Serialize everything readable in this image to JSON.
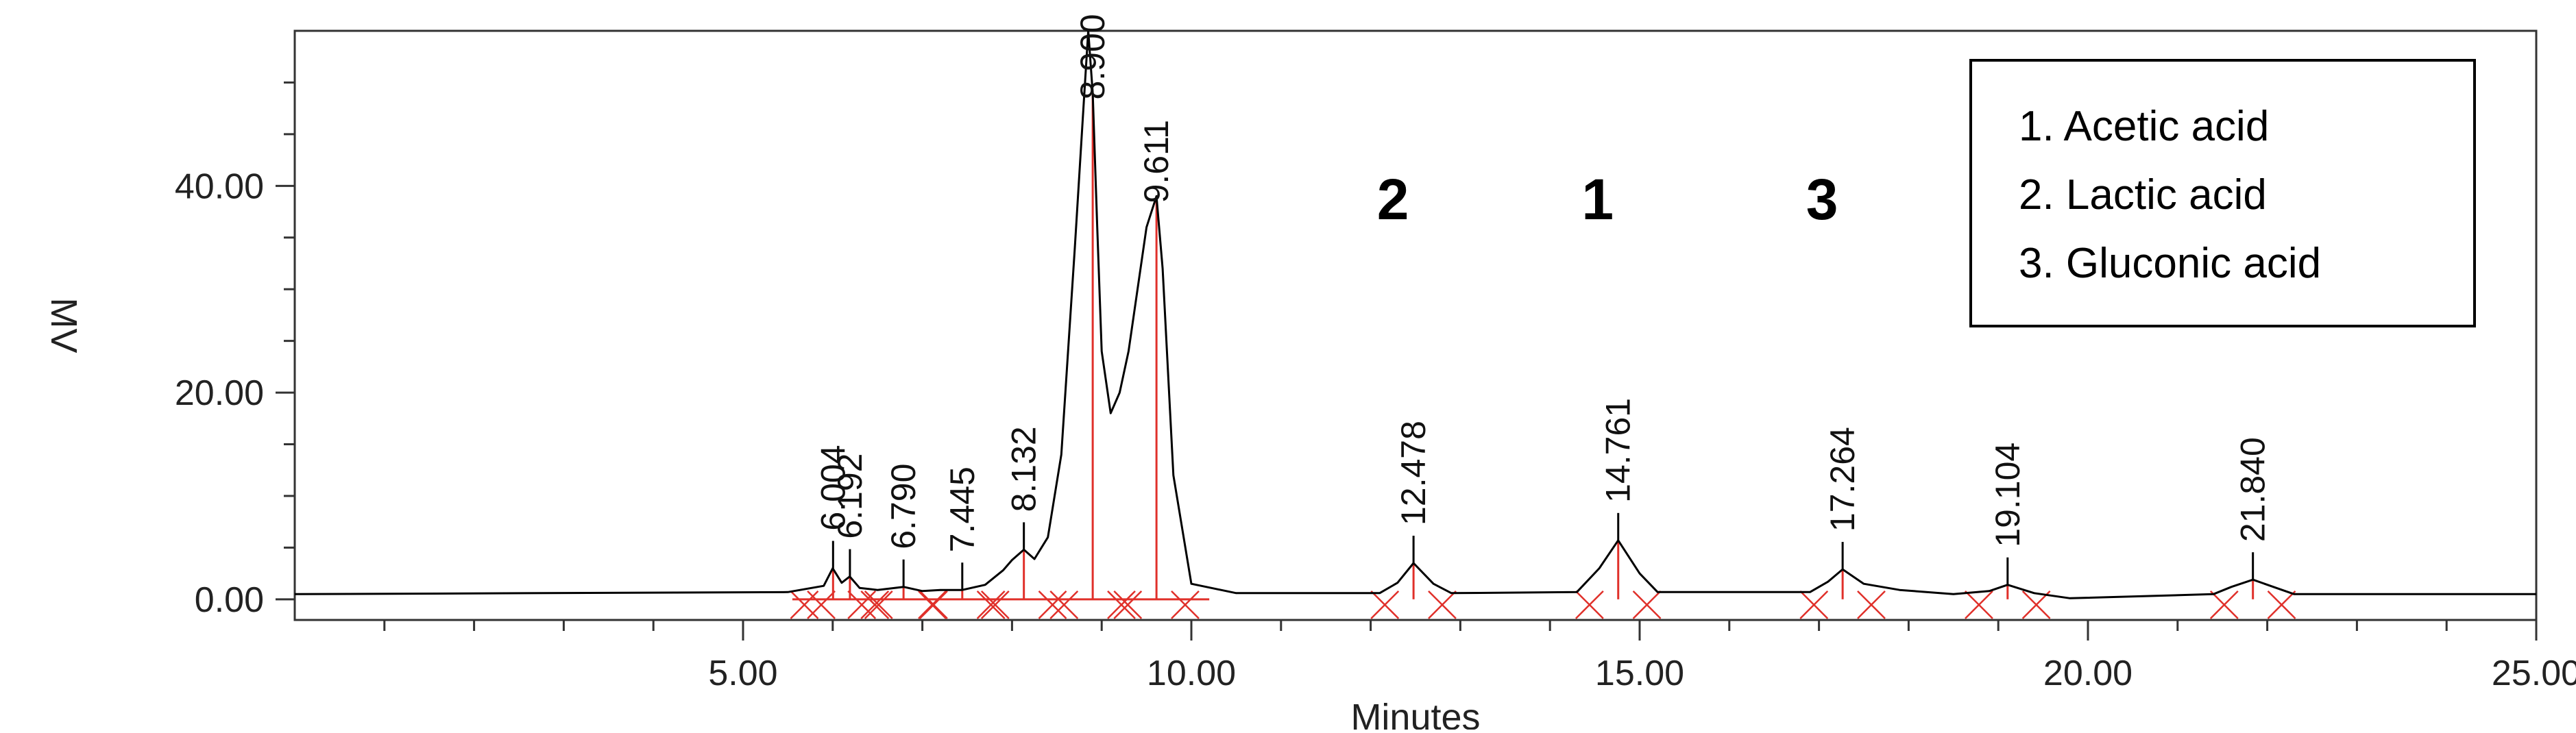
{
  "chart_data": {
    "type": "line",
    "title": "",
    "xlabel": "Minutes",
    "ylabel": "MV",
    "xlim": [
      0,
      25
    ],
    "ylim": [
      -2,
      55
    ],
    "grid": false,
    "x_ticks": [
      "5.00",
      "10.00",
      "15.00",
      "20.00",
      "25.00"
    ],
    "x_tick_values": [
      5,
      10,
      15,
      20,
      25
    ],
    "y_ticks": [
      "0.00",
      "20.00",
      "40.00"
    ],
    "y_tick_values": [
      0,
      20,
      40
    ],
    "series": [
      {
        "x": [
          0.0,
          5.5,
          5.9,
          6.0,
          6.1,
          6.19,
          6.3,
          6.5,
          6.79,
          7.0,
          7.2,
          7.445,
          7.7,
          7.9,
          8.0,
          8.132,
          8.25,
          8.4,
          8.55,
          8.7,
          8.8,
          8.85,
          8.9,
          8.95,
          9.0,
          9.1,
          9.2,
          9.3,
          9.4,
          9.5,
          9.611,
          9.68,
          9.8,
          10.0,
          10.5,
          12.1,
          12.3,
          12.478,
          12.7,
          12.9,
          14.3,
          14.55,
          14.761,
          15.0,
          15.2,
          16.9,
          17.1,
          17.264,
          17.5,
          17.9,
          18.5,
          18.9,
          19.104,
          19.4,
          19.8,
          21.4,
          21.6,
          21.84,
          22.1,
          22.3,
          25.0
        ],
        "y": [
          0.5,
          0.7,
          1.3,
          3.0,
          1.6,
          2.2,
          1.1,
          0.9,
          1.2,
          0.8,
          0.9,
          0.9,
          1.4,
          2.8,
          3.8,
          4.8,
          3.9,
          6.0,
          14.0,
          34.0,
          48.0,
          55.0,
          49.0,
          36.0,
          24.0,
          18.0,
          20.0,
          24.0,
          30.0,
          36.0,
          39.0,
          32.0,
          12.0,
          1.5,
          0.6,
          0.6,
          1.6,
          3.5,
          1.5,
          0.6,
          0.7,
          3.0,
          5.7,
          2.5,
          0.7,
          0.7,
          1.7,
          2.9,
          1.5,
          0.9,
          0.5,
          0.8,
          1.4,
          0.6,
          0.1,
          0.5,
          1.2,
          1.9,
          1.1,
          0.5,
          0.5
        ]
      }
    ],
    "peaks": [
      {
        "rt": 6.004,
        "label": "6.004",
        "height": 3.0
      },
      {
        "rt": 6.192,
        "label": "6.192",
        "height": 2.2
      },
      {
        "rt": 6.79,
        "label": "6.790",
        "height": 1.2
      },
      {
        "rt": 7.445,
        "label": "7.445",
        "height": 0.9
      },
      {
        "rt": 8.132,
        "label": "8.132",
        "height": 4.8
      },
      {
        "rt": 8.9,
        "label": "8.900",
        "height": 49.0
      },
      {
        "rt": 9.611,
        "label": "9.611",
        "height": 39.0
      },
      {
        "rt": 12.478,
        "label": "12.478",
        "height": 3.5
      },
      {
        "rt": 14.761,
        "label": "14.761",
        "height": 5.7
      },
      {
        "rt": 17.264,
        "label": "17.264",
        "height": 2.9
      },
      {
        "rt": 19.104,
        "label": "19.104",
        "height": 1.4
      },
      {
        "rt": 21.84,
        "label": "21.840",
        "height": 1.9
      }
    ],
    "peak_numbers": [
      {
        "label": "2",
        "rt": 12.478
      },
      {
        "label": "1",
        "rt": 14.761
      },
      {
        "label": "3",
        "rt": 17.264
      }
    ],
    "legend": {
      "placement": "top-right",
      "entries": [
        "1. Acetic acid",
        "2. Lactic acid",
        "3. Gluconic acid"
      ]
    },
    "colors": {
      "trace": "#000000",
      "integration": "#e0302a",
      "axis": "#333333"
    }
  }
}
